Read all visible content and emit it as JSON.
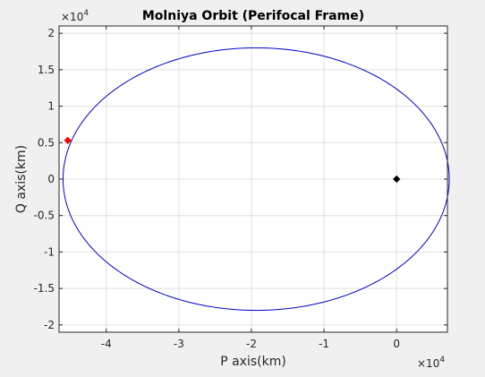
{
  "figure": {
    "background": "#f0f0f0",
    "axes_background": "#ffffff",
    "grid_color": "#dfdfdf",
    "axis_color": "#262626"
  },
  "chart_data": {
    "type": "line",
    "title": "Molniya Orbit (Perifocal Frame)",
    "xlabel": "P axis(km)",
    "ylabel": "Q axis(km)",
    "x_exponent": {
      "base": "×10",
      "power": "4"
    },
    "y_exponent": {
      "base": "×10",
      "power": "4"
    },
    "xlim": [
      -46500,
      7000
    ],
    "ylim": [
      -21000,
      21000
    ],
    "x_ticks": [
      -40000,
      -30000,
      -20000,
      -10000,
      0
    ],
    "x_tick_labels": [
      "-4",
      "-3",
      "-2",
      "-1",
      "0"
    ],
    "y_ticks": [
      -20000,
      -15000,
      -10000,
      -5000,
      0,
      5000,
      10000,
      15000,
      20000
    ],
    "y_tick_labels": [
      "-2",
      "-1.5",
      "-1",
      "-0.5",
      "0",
      "0.5",
      "1",
      "1.5",
      "2"
    ],
    "grid": true,
    "orbit": {
      "center_x": -19350,
      "center_y": 0,
      "semi_major": 26600,
      "semi_minor": 18000,
      "color": "#0000cc"
    },
    "markers": [
      {
        "x": 0,
        "y": 0,
        "color": "#000000"
      },
      {
        "x": -45300,
        "y": 5300,
        "color": "#ff0000"
      }
    ]
  }
}
